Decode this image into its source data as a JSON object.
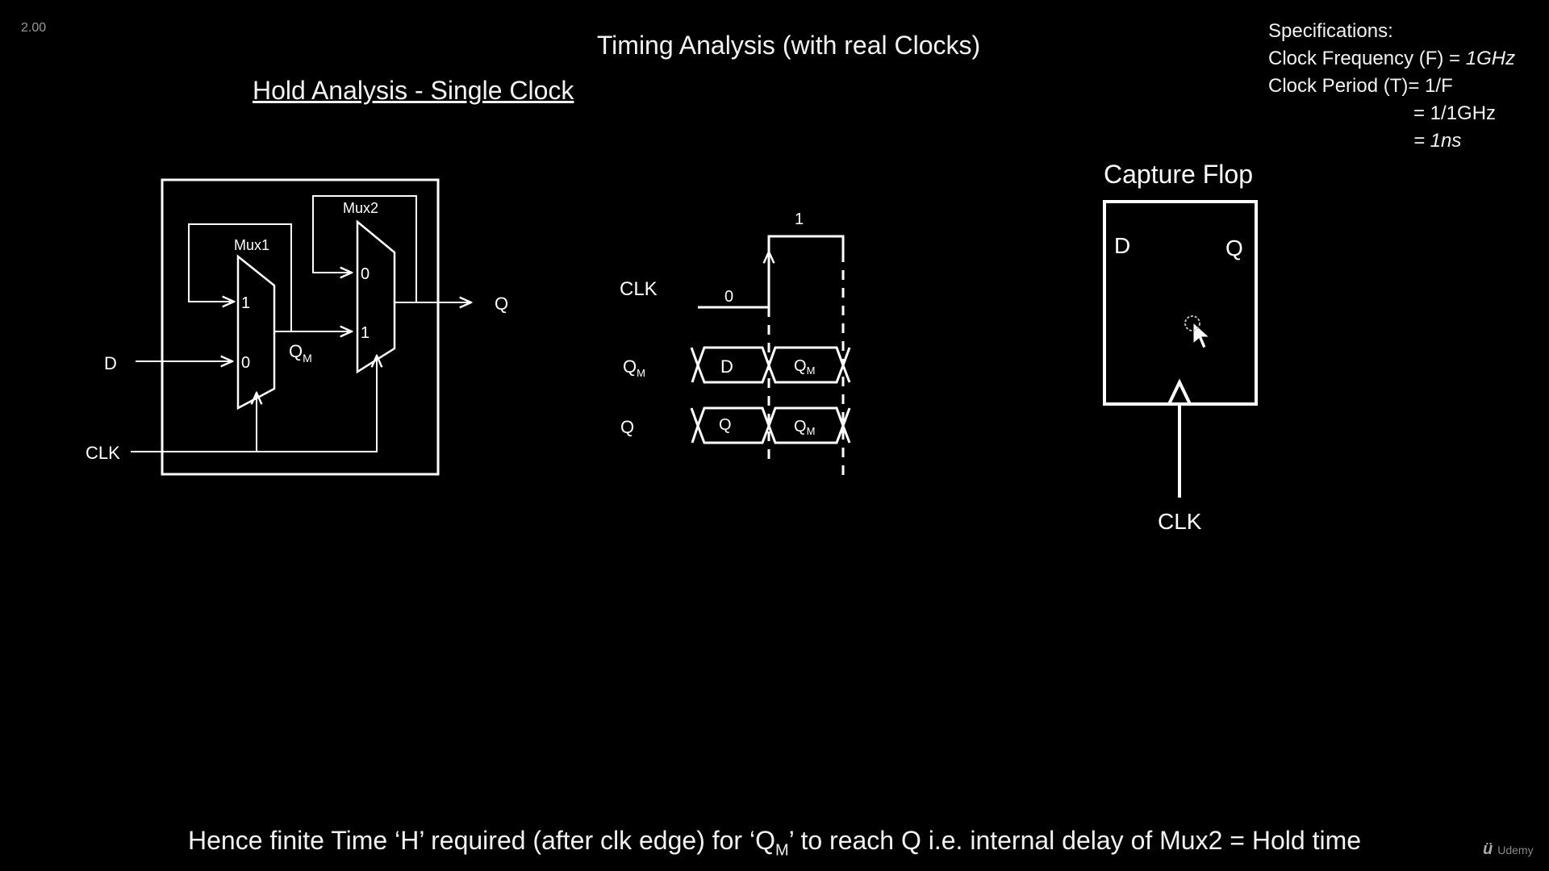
{
  "player": {
    "speed": "2.00"
  },
  "slide": {
    "title": "Timing Analysis (with real Clocks)",
    "subtitle": "Hold Analysis - Single Clock",
    "specs": {
      "heading": "Specifications:",
      "freq_label": "Clock Frequency (F) = ",
      "freq_value": "1GHz",
      "period_label": "Clock Period (T)= 1/F",
      "period_line2": "= 1/1GHz",
      "period_line3_value": "= 1ns"
    },
    "circuit": {
      "mux1": "Mux1",
      "mux2": "Mux2",
      "in_d": "D",
      "in_clk": "CLK",
      "out_q": "Q",
      "mux1_in1": "1",
      "mux1_in0": "0",
      "mux2_in0": "0",
      "mux2_in1": "1",
      "qm_main": "Q",
      "qm_sub": "M"
    },
    "waveform": {
      "clk_label": "CLK",
      "clk_low": "0",
      "clk_high": "1",
      "qm_label_main": "Q",
      "qm_label_sub": "M",
      "q_label": "Q",
      "qm_seg1": "D",
      "qm_seg2_main": "Q",
      "qm_seg2_sub": "M",
      "q_seg1": "Q",
      "q_seg2_main": "Q",
      "q_seg2_sub": "M"
    },
    "capture_flop": {
      "title": "Capture Flop",
      "d": "D",
      "q": "Q",
      "clk": "CLK"
    },
    "footer": {
      "part1": "Hence finite Time ‘H’ required (after clk edge) for ‘Q",
      "sub": "M",
      "part2": "’ to reach Q i.e. internal delay of Mux2 = Hold time"
    },
    "logo": "Udemy"
  }
}
